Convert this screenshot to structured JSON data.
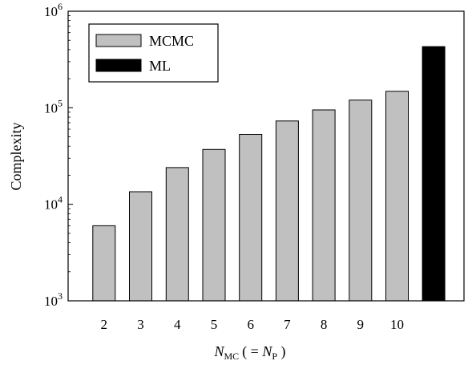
{
  "chart_data": {
    "type": "bar",
    "yscale": "log",
    "ylabel": "Complexity",
    "xlabel": {
      "italic": "N",
      "sub": "MC",
      "mid": "( = ",
      "italic2": "N",
      "sub2": "P",
      "end": " )"
    },
    "ylim": [
      1000,
      1000000
    ],
    "yticks": [
      {
        "base": "10",
        "exp": "3",
        "value": 1000
      },
      {
        "base": "10",
        "exp": "4",
        "value": 10000
      },
      {
        "base": "10",
        "exp": "5",
        "value": 100000
      },
      {
        "base": "10",
        "exp": "6",
        "value": 1000000
      }
    ],
    "categories": [
      "2",
      "3",
      "4",
      "5",
      "6",
      "7",
      "8",
      "9",
      "10",
      ""
    ],
    "series": [
      {
        "name": "MCMC",
        "color": "#c0c0c0",
        "values": [
          6000,
          13500,
          24000,
          37000,
          53000,
          73000,
          95000,
          120000,
          148000,
          null
        ]
      },
      {
        "name": "ML",
        "color": "#000000",
        "values": [
          null,
          null,
          null,
          null,
          null,
          null,
          null,
          null,
          null,
          430000
        ]
      }
    ],
    "legend_position": "top-left"
  }
}
